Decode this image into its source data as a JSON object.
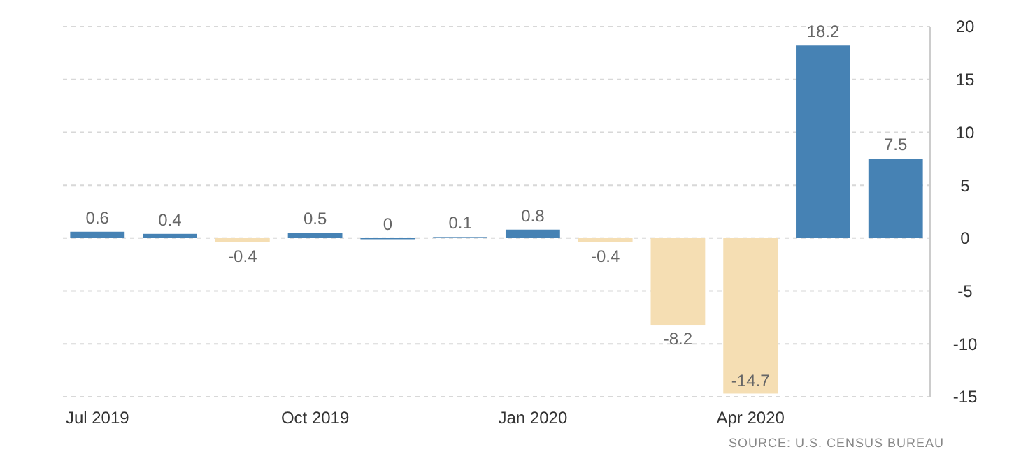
{
  "chart_data": {
    "type": "bar",
    "categories": [
      "Jul 2019",
      null,
      null,
      "Oct 2019",
      null,
      null,
      "Jan 2020",
      null,
      null,
      "Apr 2020",
      null,
      null
    ],
    "values": [
      0.6,
      0.4,
      -0.4,
      0.5,
      0,
      0.1,
      0.8,
      -0.4,
      -8.2,
      -14.7,
      18.2,
      7.5
    ],
    "colors": [
      "#4682b4",
      "#4682b4",
      "#f5deb3",
      "#4682b4",
      "#4682b4",
      "#4682b4",
      "#4682b4",
      "#f5deb3",
      "#f5deb3",
      "#f5deb3",
      "#4682b4",
      "#4682b4"
    ],
    "ylim": [
      -15,
      20
    ],
    "yticks": [
      -15,
      -10,
      -5,
      0,
      5,
      10,
      15,
      20
    ],
    "grid": "y",
    "data_labels": true,
    "annotations": [
      "SOURCE: U.S. CENSUS BUREAU"
    ]
  }
}
